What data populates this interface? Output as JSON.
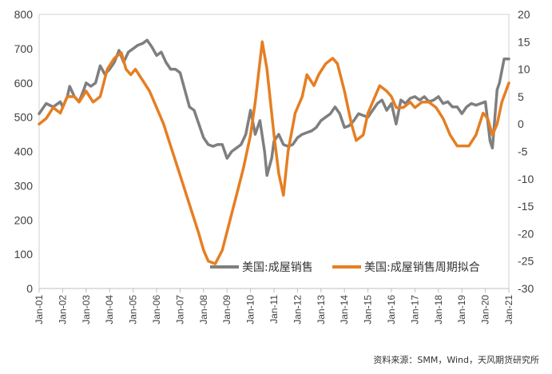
{
  "chart_data": {
    "type": "line",
    "title": "",
    "xlabel": "",
    "ylabel_left": "",
    "ylabel_right": "",
    "x_range": [
      2001.0,
      2021.0
    ],
    "categories": [
      "Jan-01",
      "Jan-02",
      "Jan-03",
      "Jan-04",
      "Jan-05",
      "Jan-06",
      "Jan-07",
      "Jan-08",
      "Jan-09",
      "Jan-10",
      "Jan-11",
      "Jan-12",
      "Jan-13",
      "Jan-14",
      "Jan-15",
      "Jan-16",
      "Jan-17",
      "Jan-18",
      "Jan-19",
      "Jan-20",
      "Jan-21"
    ],
    "left_axis": {
      "ylim": [
        0,
        800
      ],
      "ticks": [
        "0",
        "100",
        "200",
        "300",
        "400",
        "500",
        "600",
        "700",
        "800"
      ]
    },
    "right_axis": {
      "ylim": [
        -30,
        20
      ],
      "ticks": [
        "-30",
        "-25",
        "-20",
        "-15",
        "-10",
        "-5",
        "0",
        "5",
        "10",
        "15",
        "20"
      ]
    },
    "legend": {
      "placement": "bottom-right"
    },
    "series": [
      {
        "name": "美国:成屋销售",
        "axis": "left",
        "color": "#7f7f7f",
        "points": [
          [
            2001.0,
            510
          ],
          [
            2001.3,
            540
          ],
          [
            2001.6,
            530
          ],
          [
            2001.9,
            545
          ],
          [
            2002.0,
            530
          ],
          [
            2002.2,
            560
          ],
          [
            2002.3,
            590
          ],
          [
            2002.5,
            560
          ],
          [
            2002.7,
            545
          ],
          [
            2002.9,
            580
          ],
          [
            2003.0,
            600
          ],
          [
            2003.2,
            590
          ],
          [
            2003.4,
            600
          ],
          [
            2003.6,
            650
          ],
          [
            2003.8,
            625
          ],
          [
            2004.0,
            640
          ],
          [
            2004.2,
            660
          ],
          [
            2004.4,
            695
          ],
          [
            2004.6,
            660
          ],
          [
            2004.8,
            690
          ],
          [
            2005.0,
            700
          ],
          [
            2005.2,
            710
          ],
          [
            2005.4,
            715
          ],
          [
            2005.6,
            725
          ],
          [
            2005.8,
            705
          ],
          [
            2006.0,
            680
          ],
          [
            2006.2,
            690
          ],
          [
            2006.4,
            660
          ],
          [
            2006.6,
            640
          ],
          [
            2006.8,
            640
          ],
          [
            2007.0,
            630
          ],
          [
            2007.2,
            580
          ],
          [
            2007.4,
            530
          ],
          [
            2007.6,
            520
          ],
          [
            2007.8,
            480
          ],
          [
            2008.0,
            440
          ],
          [
            2008.2,
            420
          ],
          [
            2008.4,
            415
          ],
          [
            2008.6,
            420
          ],
          [
            2008.8,
            420
          ],
          [
            2009.0,
            380
          ],
          [
            2009.2,
            400
          ],
          [
            2009.4,
            410
          ],
          [
            2009.6,
            420
          ],
          [
            2009.8,
            450
          ],
          [
            2010.0,
            520
          ],
          [
            2010.2,
            450
          ],
          [
            2010.4,
            490
          ],
          [
            2010.6,
            400
          ],
          [
            2010.7,
            330
          ],
          [
            2010.9,
            380
          ],
          [
            2011.0,
            430
          ],
          [
            2011.2,
            450
          ],
          [
            2011.4,
            420
          ],
          [
            2011.6,
            415
          ],
          [
            2011.8,
            420
          ],
          [
            2012.0,
            440
          ],
          [
            2012.2,
            450
          ],
          [
            2012.4,
            455
          ],
          [
            2012.6,
            460
          ],
          [
            2012.8,
            470
          ],
          [
            2013.0,
            490
          ],
          [
            2013.2,
            500
          ],
          [
            2013.4,
            510
          ],
          [
            2013.6,
            530
          ],
          [
            2013.8,
            510
          ],
          [
            2014.0,
            470
          ],
          [
            2014.2,
            475
          ],
          [
            2014.4,
            490
          ],
          [
            2014.6,
            510
          ],
          [
            2014.8,
            505
          ],
          [
            2015.0,
            500
          ],
          [
            2015.2,
            520
          ],
          [
            2015.4,
            540
          ],
          [
            2015.6,
            550
          ],
          [
            2015.8,
            520
          ],
          [
            2016.0,
            540
          ],
          [
            2016.2,
            480
          ],
          [
            2016.4,
            550
          ],
          [
            2016.6,
            540
          ],
          [
            2016.8,
            555
          ],
          [
            2017.0,
            560
          ],
          [
            2017.2,
            550
          ],
          [
            2017.4,
            560
          ],
          [
            2017.6,
            545
          ],
          [
            2017.8,
            550
          ],
          [
            2018.0,
            560
          ],
          [
            2018.2,
            540
          ],
          [
            2018.4,
            545
          ],
          [
            2018.6,
            530
          ],
          [
            2018.8,
            530
          ],
          [
            2019.0,
            510
          ],
          [
            2019.2,
            530
          ],
          [
            2019.4,
            540
          ],
          [
            2019.6,
            535
          ],
          [
            2019.8,
            540
          ],
          [
            2020.0,
            545
          ],
          [
            2020.2,
            430
          ],
          [
            2020.3,
            410
          ],
          [
            2020.5,
            580
          ],
          [
            2020.6,
            600
          ],
          [
            2020.8,
            670
          ],
          [
            2021.0,
            670
          ]
        ]
      },
      {
        "name": "美国:成屋销售周期拟合",
        "axis": "right",
        "color": "#e67e22",
        "points": [
          [
            2001.0,
            0
          ],
          [
            2001.3,
            1
          ],
          [
            2001.6,
            3
          ],
          [
            2001.9,
            2
          ],
          [
            2002.2,
            5
          ],
          [
            2002.5,
            5
          ],
          [
            2002.7,
            4
          ],
          [
            2003.0,
            6
          ],
          [
            2003.3,
            4
          ],
          [
            2003.6,
            5
          ],
          [
            2003.9,
            10
          ],
          [
            2004.2,
            12
          ],
          [
            2004.5,
            13
          ],
          [
            2004.7,
            10
          ],
          [
            2004.9,
            9
          ],
          [
            2005.1,
            10
          ],
          [
            2005.4,
            8
          ],
          [
            2005.7,
            6
          ],
          [
            2006.0,
            3
          ],
          [
            2006.3,
            0
          ],
          [
            2006.6,
            -4
          ],
          [
            2006.9,
            -8
          ],
          [
            2007.2,
            -12
          ],
          [
            2007.5,
            -16
          ],
          [
            2007.8,
            -20
          ],
          [
            2008.0,
            -23
          ],
          [
            2008.2,
            -25
          ],
          [
            2008.5,
            -25.5
          ],
          [
            2008.8,
            -23
          ],
          [
            2009.1,
            -18
          ],
          [
            2009.4,
            -13
          ],
          [
            2009.7,
            -8
          ],
          [
            2010.0,
            -2
          ],
          [
            2010.2,
            4
          ],
          [
            2010.5,
            15
          ],
          [
            2010.7,
            10
          ],
          [
            2011.0,
            -2
          ],
          [
            2011.2,
            -9
          ],
          [
            2011.4,
            -13
          ],
          [
            2011.6,
            -5
          ],
          [
            2011.9,
            2
          ],
          [
            2012.2,
            5
          ],
          [
            2012.4,
            9
          ],
          [
            2012.7,
            7
          ],
          [
            2012.9,
            9
          ],
          [
            2013.2,
            11
          ],
          [
            2013.5,
            12
          ],
          [
            2013.7,
            11
          ],
          [
            2014.0,
            6
          ],
          [
            2014.3,
            0
          ],
          [
            2014.5,
            -3
          ],
          [
            2014.8,
            -2
          ],
          [
            2015.0,
            2
          ],
          [
            2015.3,
            5
          ],
          [
            2015.5,
            7
          ],
          [
            2015.8,
            6
          ],
          [
            2016.0,
            5
          ],
          [
            2016.2,
            3
          ],
          [
            2016.5,
            3
          ],
          [
            2016.8,
            4
          ],
          [
            2017.0,
            3
          ],
          [
            2017.3,
            4
          ],
          [
            2017.6,
            4
          ],
          [
            2017.9,
            3
          ],
          [
            2018.2,
            1
          ],
          [
            2018.5,
            -2
          ],
          [
            2018.8,
            -4
          ],
          [
            2019.0,
            -4
          ],
          [
            2019.3,
            -4
          ],
          [
            2019.6,
            -2
          ],
          [
            2019.9,
            2
          ],
          [
            2020.1,
            1
          ],
          [
            2020.3,
            -2
          ],
          [
            2020.5,
            0
          ],
          [
            2020.7,
            4
          ],
          [
            2021.0,
            7.5
          ]
        ]
      }
    ]
  },
  "source_note": "资料来源：SMM，Wind，天风期货研究所"
}
